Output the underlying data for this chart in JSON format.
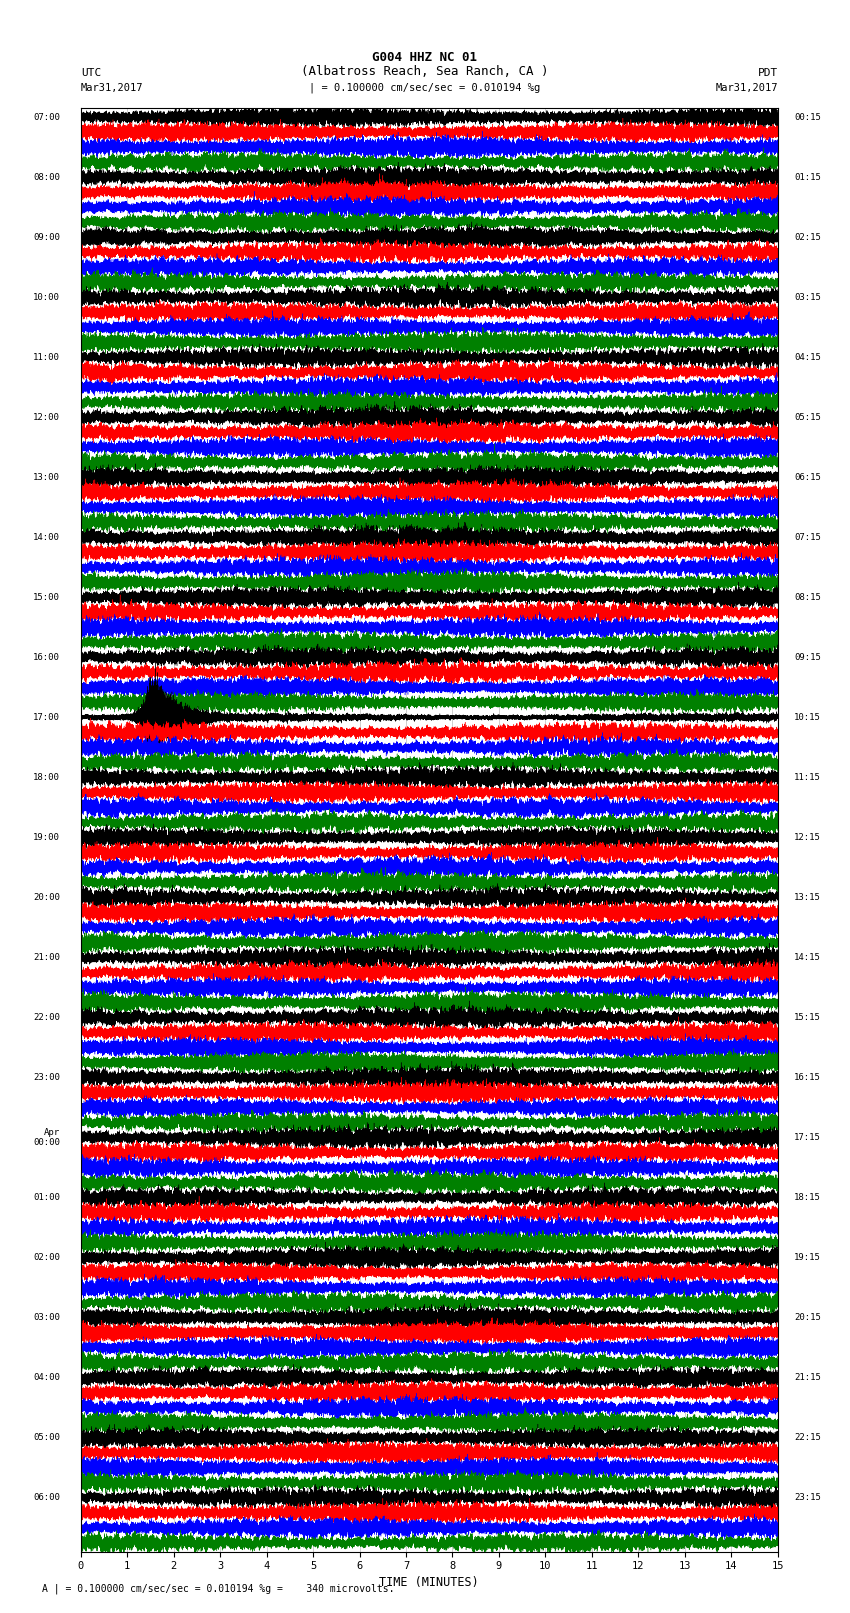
{
  "title_line1": "G004 HHZ NC 01",
  "title_line2": "(Albatross Reach, Sea Ranch, CA )",
  "scale_text": "| = 0.100000 cm/sec/sec = 0.010194 %g",
  "left_label": "UTC",
  "right_label": "PDT",
  "left_date": "Mar31,2017",
  "right_date": "Mar31,2017",
  "xlabel": "TIME (MINUTES)",
  "footer_text": "A | = 0.100000 cm/sec/sec = 0.010194 %g =    340 microvolts.",
  "trace_colors": [
    "black",
    "red",
    "blue",
    "green"
  ],
  "n_hours": 24,
  "n_traces_per_hour": 4,
  "n_minutes": 15,
  "sample_rate": 100,
  "amplitude_scale": 0.38,
  "background_color": "white",
  "trace_linewidth": 0.3,
  "xmin": 0,
  "xmax": 15,
  "xticks": [
    0,
    1,
    2,
    3,
    4,
    5,
    6,
    7,
    8,
    9,
    10,
    11,
    12,
    13,
    14,
    15
  ],
  "utc_display": [
    [
      0,
      "07:00"
    ],
    [
      4,
      "08:00"
    ],
    [
      8,
      "09:00"
    ],
    [
      12,
      "10:00"
    ],
    [
      16,
      "11:00"
    ],
    [
      20,
      "12:00"
    ],
    [
      24,
      "13:00"
    ],
    [
      28,
      "14:00"
    ],
    [
      32,
      "15:00"
    ],
    [
      36,
      "16:00"
    ],
    [
      40,
      "17:00"
    ],
    [
      44,
      "18:00"
    ],
    [
      48,
      "19:00"
    ],
    [
      52,
      "20:00"
    ],
    [
      56,
      "21:00"
    ],
    [
      60,
      "22:00"
    ],
    [
      64,
      "23:00"
    ],
    [
      68,
      "Apr\n00:00"
    ],
    [
      72,
      "01:00"
    ],
    [
      76,
      "02:00"
    ],
    [
      80,
      "03:00"
    ],
    [
      84,
      "04:00"
    ],
    [
      88,
      "05:00"
    ],
    [
      92,
      "06:00"
    ]
  ],
  "pdt_display": [
    [
      0,
      "00:15"
    ],
    [
      4,
      "01:15"
    ],
    [
      8,
      "02:15"
    ],
    [
      12,
      "03:15"
    ],
    [
      16,
      "04:15"
    ],
    [
      20,
      "05:15"
    ],
    [
      24,
      "06:15"
    ],
    [
      28,
      "07:15"
    ],
    [
      32,
      "08:15"
    ],
    [
      36,
      "09:15"
    ],
    [
      40,
      "10:15"
    ],
    [
      44,
      "11:15"
    ],
    [
      48,
      "12:15"
    ],
    [
      52,
      "13:15"
    ],
    [
      56,
      "14:15"
    ],
    [
      60,
      "15:15"
    ],
    [
      64,
      "16:15"
    ],
    [
      68,
      "17:15"
    ],
    [
      72,
      "18:15"
    ],
    [
      76,
      "19:15"
    ],
    [
      80,
      "20:15"
    ],
    [
      84,
      "21:15"
    ],
    [
      88,
      "22:15"
    ],
    [
      92,
      "23:15"
    ]
  ],
  "grid_color": "#aaaaaa",
  "grid_linewidth": 0.4
}
